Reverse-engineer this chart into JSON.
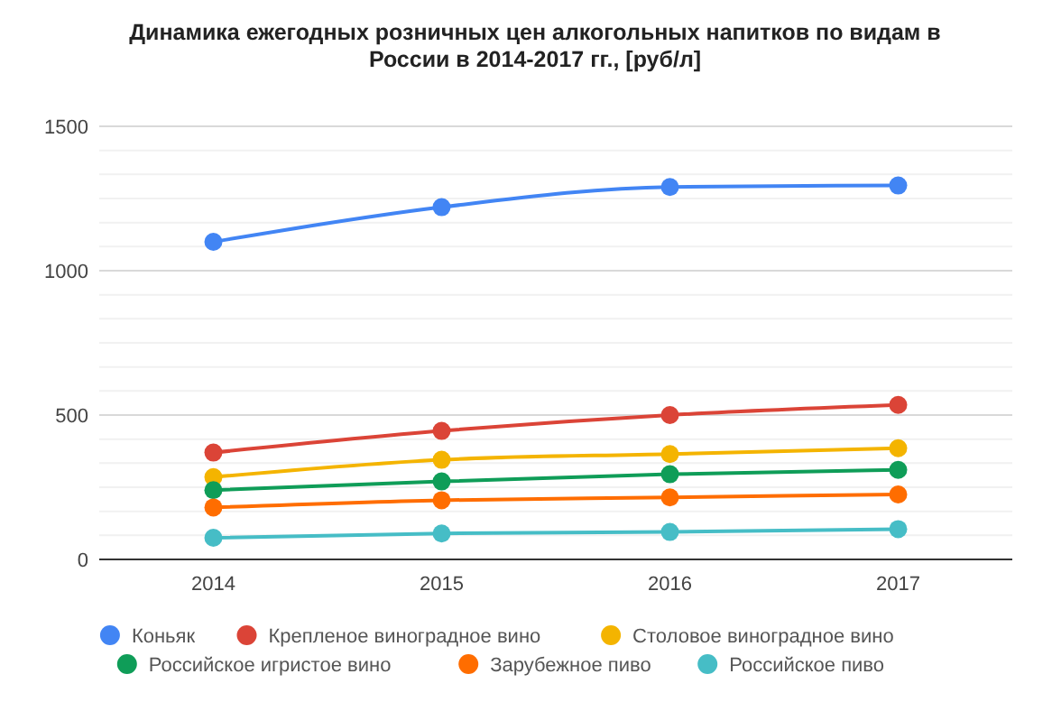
{
  "chart_data": {
    "type": "line",
    "title": "Динамика ежегодных розничных цен алкогольных напитков по видам в России в 2014-2017 гг., [руб/л]",
    "categories": [
      "2014",
      "2015",
      "2016",
      "2017"
    ],
    "series": [
      {
        "name": "Коньяк",
        "color": "#4285f4",
        "values": [
          1100,
          1220,
          1290,
          1295
        ]
      },
      {
        "name": "Крепленое виноградное вино",
        "color": "#db4437",
        "values": [
          370,
          445,
          500,
          535
        ]
      },
      {
        "name": "Столовое виноградное вино",
        "color": "#f4b400",
        "values": [
          285,
          345,
          365,
          385
        ]
      },
      {
        "name": "Российское игристое вино",
        "color": "#0f9d58",
        "values": [
          240,
          270,
          295,
          310
        ]
      },
      {
        "name": "Зарубежное пиво",
        "color": "#ff6d00",
        "values": [
          180,
          205,
          215,
          225
        ]
      },
      {
        "name": "Российское пиво",
        "color": "#46bdc6",
        "values": [
          75,
          90,
          95,
          105
        ]
      }
    ],
    "ylim": [
      0,
      1500
    ],
    "yticks": [
      0,
      500,
      1000,
      1500
    ],
    "grid": "y",
    "legend": "bottom",
    "marker": "circle",
    "line_style": "solid"
  }
}
